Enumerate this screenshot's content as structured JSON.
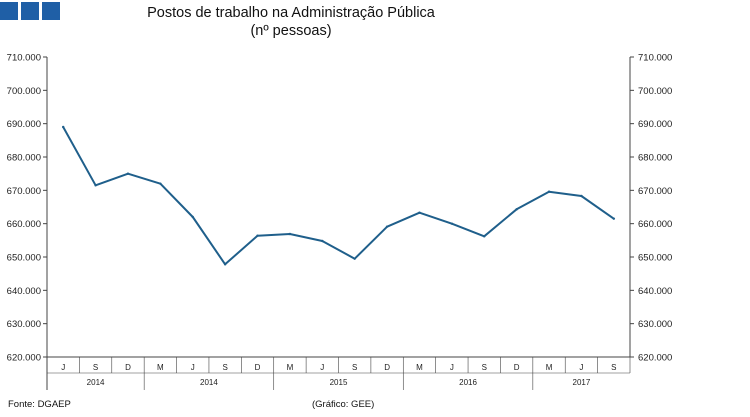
{
  "header": {
    "title": "Postos de trabalho na Administração Pública",
    "subtitle": "(nº pessoas)"
  },
  "footer": {
    "source": "Fonte: DGAEP",
    "credit": "(Gráfico: GEE)"
  },
  "colors": {
    "line": "#1f5f8b",
    "logo": "#1f5fa6"
  },
  "chart_data": {
    "type": "line",
    "title": "Postos de trabalho na Administração Pública",
    "subtitle": "(nº pessoas)",
    "categories": [
      "J",
      "S",
      "D",
      "M",
      "J",
      "S",
      "D",
      "M",
      "J",
      "S",
      "D",
      "M",
      "J",
      "S",
      "D",
      "M",
      "J",
      "S"
    ],
    "year_groups": [
      {
        "label": "2014",
        "span": 3
      },
      {
        "label": "2014",
        "span": 4
      },
      {
        "label": "2015",
        "span": 4
      },
      {
        "label": "2016",
        "span": 4
      },
      {
        "label": "2017",
        "span": 3
      }
    ],
    "series": [
      {
        "values": [
          689000,
          671500,
          675000,
          672000,
          662000,
          647800,
          656400,
          656900,
          654800,
          649500,
          659100,
          663300,
          660000,
          656200,
          664300,
          669600,
          668300,
          661500
        ]
      }
    ],
    "ylim": [
      620000,
      710000
    ],
    "yticks": [
      "620.000",
      "630.000",
      "640.000",
      "650.000",
      "660.000",
      "670.000",
      "680.000",
      "690.000",
      "700.000",
      "710.000"
    ],
    "ytick_values": [
      620000,
      630000,
      640000,
      650000,
      660000,
      670000,
      680000,
      690000,
      700000,
      710000
    ],
    "grid": false,
    "legend": "none"
  }
}
